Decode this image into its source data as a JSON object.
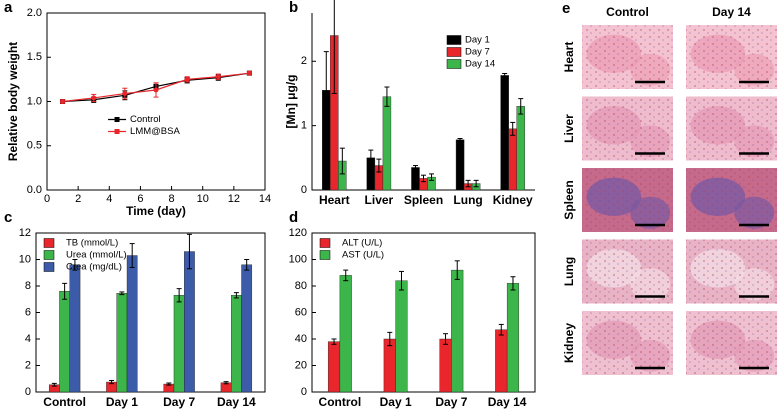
{
  "chart_data": [
    {
      "type": "line",
      "panel_label": "a",
      "xlabel": "Time (day)",
      "ylabel": "Relative body weight",
      "x": [
        1,
        3,
        5,
        7,
        9,
        11,
        13
      ],
      "series": [
        {
          "name": "Control",
          "color": "#000000",
          "values": [
            1.0,
            1.02,
            1.07,
            1.17,
            1.24,
            1.27,
            1.32
          ],
          "errors": [
            0.02,
            0.03,
            0.05,
            0.04,
            0.03,
            0.03,
            0.02
          ]
        },
        {
          "name": "LMM@BSA",
          "color": "#e8262b",
          "values": [
            1.0,
            1.04,
            1.09,
            1.13,
            1.25,
            1.28,
            1.32
          ],
          "errors": [
            0.02,
            0.04,
            0.06,
            0.08,
            0.03,
            0.03,
            0.02
          ]
        }
      ],
      "xlim": [
        0,
        14
      ],
      "xticks": [
        0,
        2,
        4,
        6,
        8,
        10,
        12,
        14
      ],
      "ylim": [
        0,
        2
      ],
      "yticks": [
        {
          "value": 0,
          "label": "0.0"
        },
        {
          "value": 0.5,
          "label": "0.5"
        },
        {
          "value": 1,
          "label": "1.0"
        },
        {
          "value": 1.5,
          "label": "1.5"
        },
        {
          "value": 2,
          "label": "2.0"
        }
      ],
      "legend": "center"
    },
    {
      "type": "bar",
      "panel_label": "b",
      "ylabel": "[Mn] μg/g",
      "categories": [
        "Heart",
        "Liver",
        "Spleen",
        "Lung",
        "Kidney"
      ],
      "series": [
        {
          "name": "Day 1",
          "color": "#000000",
          "values": [
            1.55,
            0.5,
            0.35,
            0.78,
            1.78
          ],
          "errors": [
            0.6,
            0.12,
            0.03,
            0.02,
            0.03
          ]
        },
        {
          "name": "Day 7",
          "color": "#e8262b",
          "values": [
            2.4,
            0.38,
            0.18,
            0.1,
            0.95
          ],
          "errors": [
            0.9,
            0.1,
            0.05,
            0.05,
            0.1
          ]
        },
        {
          "name": "Day 14",
          "color": "#3cb54a",
          "values": [
            0.45,
            1.45,
            0.2,
            0.1,
            1.3
          ],
          "errors": [
            0.2,
            0.15,
            0.05,
            0.05,
            0.12
          ]
        }
      ],
      "ylim": [
        0,
        2.75
      ],
      "yticks": [
        0,
        1,
        2
      ],
      "legend": "upper right"
    },
    {
      "type": "bar",
      "panel_label": "c",
      "categories": [
        "Control",
        "Day 1",
        "Day 7",
        "Day 14"
      ],
      "series": [
        {
          "name": "TB (mmol/L)",
          "color": "#e8262b",
          "values": [
            0.55,
            0.75,
            0.6,
            0.7
          ],
          "errors": [
            0.1,
            0.12,
            0.08,
            0.08
          ]
        },
        {
          "name": "Urea (mmol/L)",
          "color": "#3cb54a",
          "values": [
            7.6,
            7.45,
            7.3,
            7.3
          ],
          "errors": [
            0.6,
            0.1,
            0.5,
            0.2
          ]
        },
        {
          "name": "Crea (mg/dL)",
          "color": "#3c5ba8",
          "values": [
            9.6,
            10.3,
            10.6,
            9.6
          ],
          "errors": [
            0.4,
            0.9,
            1.3,
            0.4
          ]
        }
      ],
      "ylim": [
        0,
        12
      ],
      "yticks": [
        0,
        2,
        4,
        6,
        8,
        10,
        12
      ],
      "legend": "upper left"
    },
    {
      "type": "bar",
      "panel_label": "d",
      "categories": [
        "Control",
        "Day 1",
        "Day 7",
        "Day 14"
      ],
      "series": [
        {
          "name": "ALT (U/L)",
          "color": "#e8262b",
          "values": [
            38,
            40,
            40,
            47
          ],
          "errors": [
            2,
            5,
            4,
            4
          ]
        },
        {
          "name": "AST (U/L)",
          "color": "#3cb54a",
          "values": [
            88,
            84,
            92,
            82
          ],
          "errors": [
            4,
            7,
            7,
            5
          ]
        }
      ],
      "ylim": [
        0,
        120
      ],
      "yticks": [
        0,
        20,
        40,
        60,
        80,
        100,
        120
      ],
      "legend": "upper left"
    }
  ],
  "histology": {
    "panel_label": "e",
    "columns": [
      "Control",
      "Day 14"
    ],
    "rows": [
      "Heart",
      "Liver",
      "Spleen",
      "Lung",
      "Kidney"
    ]
  }
}
